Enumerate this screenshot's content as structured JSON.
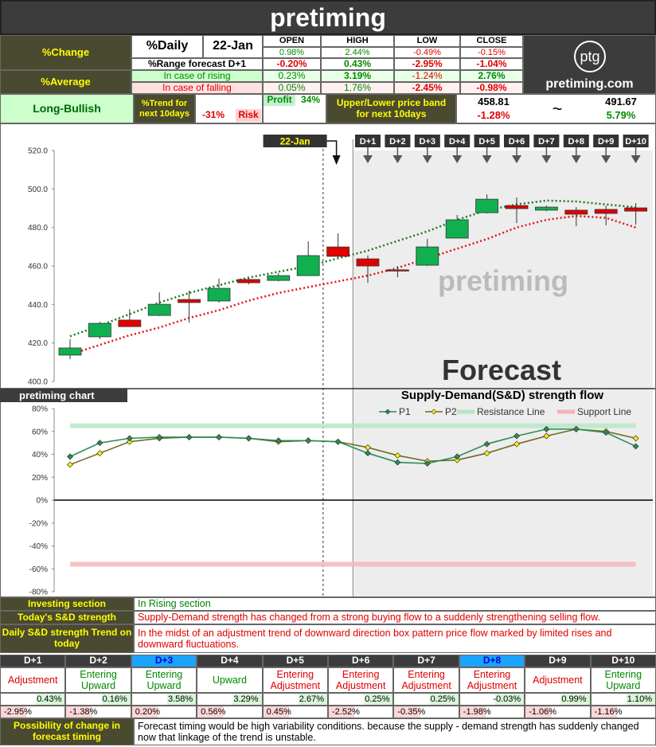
{
  "header": {
    "title": "pretiming"
  },
  "summary": {
    "change_label": "%Change",
    "daily_label": "%Daily",
    "date": "22-Jan",
    "columns": [
      "OPEN",
      "HIGH",
      "LOW",
      "CLOSE"
    ],
    "daily_values": [
      "0.98%",
      "2.44%",
      "-0.49%",
      "-0.15%"
    ],
    "range_forecast": {
      "label": "%Range forecast D+1",
      "values": [
        "-0.20%",
        "0.43%",
        "-2.95%",
        "-1.04%"
      ]
    },
    "average_label": "%Average",
    "rising": {
      "label": "In case of rising",
      "values": [
        "0.23%",
        "3.19%",
        "-1.24%",
        "2.76%"
      ]
    },
    "falling": {
      "label": "In case of falling",
      "values": [
        "0.05%",
        "1.76%",
        "-2.45%",
        "-0.98%"
      ]
    }
  },
  "logo": {
    "mark": "ptg",
    "site": "pretiming.com"
  },
  "trend": {
    "outlook": "Long-Bullish",
    "label": "%Trend for next 10days",
    "risk_value": "-31%",
    "risk_label": "Risk",
    "profit_label": "Profit",
    "profit_value": "34%"
  },
  "band": {
    "label": "Upper/Lower price band for next 10days",
    "lower": "458.81",
    "lower_change": "-1.28%",
    "separator": "~",
    "upper": "491.67",
    "upper_change": "5.79%"
  },
  "chart_data": [
    {
      "type": "candlestick",
      "watermark": "pretiming",
      "forecast_label": "Forecast",
      "categories": [
        null,
        null,
        null,
        null,
        null,
        null,
        null,
        null,
        null,
        "22-Jan",
        "D+1",
        "D+2",
        "D+3",
        "D+4",
        "D+5",
        "D+6",
        "D+7",
        "D+8",
        "D+9",
        "D+10"
      ],
      "open": [
        413.7,
        423.2,
        431.9,
        434.3,
        442.6,
        441.8,
        453.0,
        452.5,
        455.0,
        469.9,
        463.7,
        458.0,
        460.4,
        474.5,
        487.7,
        491.4,
        489.0,
        489.0,
        489.4,
        490.2
      ],
      "high": [
        421.9,
        431.0,
        437.6,
        446.3,
        447.2,
        453.4,
        453.8,
        456.3,
        472.8,
        477.0,
        465.5,
        460.0,
        474.0,
        486.5,
        497.2,
        495.6,
        491.4,
        490.6,
        491.4,
        492.7
      ],
      "low": [
        411.6,
        422.0,
        428.5,
        434.0,
        430.6,
        441.0,
        450.5,
        452.0,
        455.0,
        464.1,
        451.2,
        454.2,
        460.0,
        474.5,
        487.3,
        482.3,
        488.5,
        480.7,
        481.1,
        481.5
      ],
      "close": [
        417.4,
        430.2,
        428.5,
        440.1,
        441.0,
        448.4,
        451.3,
        455.0,
        465.4,
        465.0,
        460.0,
        458.0,
        469.9,
        484.0,
        494.7,
        489.8,
        490.6,
        486.9,
        487.3,
        488.5
      ],
      "up_color": "#10b050",
      "down_color": "#e00000",
      "lines": [
        {
          "color": "#1a7a1a",
          "values": [
            423.5,
            429,
            435,
            441,
            446,
            450,
            454,
            457,
            460,
            464,
            468,
            473,
            478,
            484,
            489,
            492,
            494,
            493.5,
            492,
            490.5
          ]
        },
        {
          "color": "#e81010",
          "values": [
            414,
            419,
            424,
            428,
            433,
            437,
            442,
            446,
            449,
            452,
            455,
            459,
            464,
            469,
            474,
            480,
            484,
            486,
            485,
            480
          ]
        }
      ],
      "ylim": [
        400,
        520
      ],
      "yticks": [
        {
          "value": 400,
          "label": "400.0"
        },
        {
          "value": 420,
          "label": "420.0"
        },
        {
          "value": 440,
          "label": "440.0"
        },
        {
          "value": 460,
          "label": "460.0"
        },
        {
          "value": 480,
          "label": "480.0"
        },
        {
          "value": 500,
          "label": "500.0"
        },
        {
          "value": 520,
          "label": "520.0"
        }
      ],
      "grid": false
    },
    {
      "type": "line",
      "title": "Supply-Demand(S&D) strength flow",
      "tag": "pretiming chart",
      "categories": [
        null,
        null,
        null,
        null,
        null,
        null,
        null,
        null,
        null,
        null,
        null,
        null,
        null,
        null,
        null,
        null,
        null,
        null,
        null,
        null
      ],
      "series": [
        {
          "name": "P1",
          "color": "#2e8b57",
          "marker": "#2e8b57",
          "values": [
            38,
            50,
            54,
            55,
            55,
            55,
            54,
            52,
            52,
            51,
            41,
            33,
            32,
            38,
            49,
            56,
            62,
            62,
            59,
            47
          ]
        },
        {
          "name": "P2",
          "color": "#6b6b1f",
          "marker": "#ffee00",
          "values": [
            31,
            41,
            51,
            54,
            55,
            55,
            54,
            51,
            52,
            51,
            46,
            39,
            34,
            35,
            41,
            49,
            56,
            62,
            60,
            54
          ]
        },
        {
          "name": "Resistance Line",
          "color": "#b5e6c4",
          "values": [
            65,
            65,
            65,
            65,
            65,
            65,
            65,
            65,
            65,
            65,
            65,
            65,
            65,
            65,
            65,
            65,
            65,
            65,
            65,
            65
          ]
        },
        {
          "name": "Support Line",
          "color": "#f4b4b4",
          "values": [
            -56,
            -56,
            -56,
            -56,
            -56,
            -56,
            -56,
            -56,
            -56,
            -56,
            -56,
            -56,
            -56,
            -56,
            -56,
            -56,
            -56,
            -56,
            -56,
            -56
          ]
        }
      ],
      "ylim": [
        -80,
        80
      ],
      "yticks": [
        {
          "value": -80,
          "label": "-80%"
        },
        {
          "value": -60,
          "label": "-60%"
        },
        {
          "value": -40,
          "label": "-40%"
        },
        {
          "value": -20,
          "label": "-20%"
        },
        {
          "value": 0,
          "label": "0%"
        },
        {
          "value": 20,
          "label": "20%"
        },
        {
          "value": 40,
          "label": "40%"
        },
        {
          "value": 60,
          "label": "60%"
        },
        {
          "value": 80,
          "label": "80%"
        }
      ],
      "grid": false
    }
  ],
  "sections": [
    {
      "label": "Investing section",
      "text": "In Rising section",
      "color": "#008000"
    },
    {
      "label": "Today's S&D strength",
      "text": "Supply-Demand strength has changed from a strong buying flow to a suddenly strengthening selling flow.",
      "color": "#e00000"
    },
    {
      "label": "Daily S&D strength Trend on today",
      "text": "In the midst of an adjustment trend of downward direction box pattern price flow marked by limited rises and downward fluctuations.",
      "color": "#e00000"
    }
  ],
  "forecast": {
    "days": [
      "D+1",
      "D+2",
      "D+3",
      "D+4",
      "D+5",
      "D+6",
      "D+7",
      "D+8",
      "D+9",
      "D+10"
    ],
    "highlight": [
      false,
      false,
      true,
      false,
      false,
      false,
      false,
      true,
      false,
      false
    ],
    "signals": [
      "Adjustment",
      "Entering Upward",
      "Entering Upward",
      "Upward",
      "Entering Adjustment",
      "Entering Adjustment",
      "Entering Adjustment",
      "Entering Adjustment",
      "Adjustment",
      "Entering Upward"
    ],
    "up": [
      "0.43%",
      "0.16%",
      "3.58%",
      "3.29%",
      "2.67%",
      "0.25%",
      "0.25%",
      "-0.03%",
      "0.99%",
      "1.10%"
    ],
    "down": [
      "-2.95%",
      "-1.38%",
      "0.20%",
      "0.56%",
      "0.45%",
      "-2.52%",
      "-0.35%",
      "-1.98%",
      "-1.06%",
      "-1.16%"
    ]
  },
  "possibility": {
    "label": "Possibility of change in forecast timing",
    "text": "Forecast timing would be high variability conditions. because the supply - demand strength has suddenly changed now that linkage of the trend is unstable."
  }
}
